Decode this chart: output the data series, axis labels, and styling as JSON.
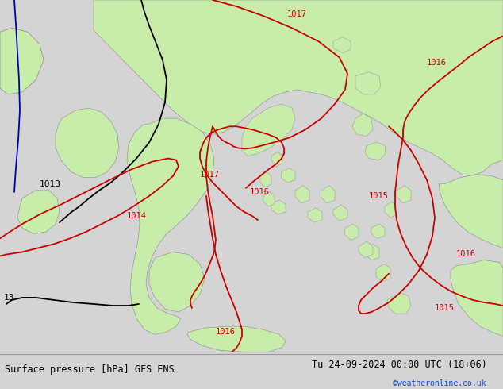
{
  "title_left": "Surface pressure [hPa] GFS ENS",
  "title_right": "Tu 24-09-2024 00:00 UTC (18+06)",
  "copyright": "©weatheronline.co.uk",
  "bg_color": "#d4d4d4",
  "land_color": "#c8edaa",
  "sea_color": "#d4d4d4",
  "border_color": "#888888",
  "red": "#cc0000",
  "black": "#000000",
  "blue": "#0000bb",
  "copyright_color": "#1144cc",
  "label_fs": 7.5,
  "footer_fs": 8.5
}
